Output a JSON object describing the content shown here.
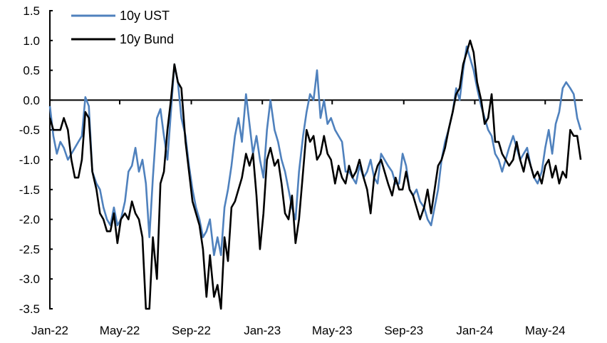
{
  "chart_data": {
    "type": "line",
    "title": "",
    "xlabel": "",
    "ylabel": "",
    "ylim": [
      -3.5,
      1.5
    ],
    "yticks": [
      "1.5",
      "1.0",
      "0.5",
      "0.0",
      "-0.5",
      "-1.0",
      "-1.5",
      "-2.0",
      "-2.5",
      "-3.0",
      "-3.5"
    ],
    "xticks": [
      {
        "date": "2022-01-01",
        "label": "Jan-22"
      },
      {
        "date": "2022-05-01",
        "label": "May-22"
      },
      {
        "date": "2022-09-01",
        "label": "Sep-22"
      },
      {
        "date": "2023-01-01",
        "label": "Jan-23"
      },
      {
        "date": "2023-05-01",
        "label": "May-23"
      },
      {
        "date": "2023-09-01",
        "label": "Sep-23"
      },
      {
        "date": "2024-01-01",
        "label": "Jan-24"
      },
      {
        "date": "2024-05-01",
        "label": "May-24"
      }
    ],
    "grid": false,
    "zero_line": true,
    "legend_position": "top-left",
    "x": [
      "2022-01-01",
      "2022-01-07",
      "2022-01-13",
      "2022-01-19",
      "2022-01-25",
      "2022-02-01",
      "2022-02-07",
      "2022-02-13",
      "2022-02-19",
      "2022-02-25",
      "2022-03-03",
      "2022-03-09",
      "2022-03-15",
      "2022-03-22",
      "2022-03-28",
      "2022-04-03",
      "2022-04-09",
      "2022-04-15",
      "2022-04-21",
      "2022-04-27",
      "2022-05-03",
      "2022-05-10",
      "2022-05-16",
      "2022-05-22",
      "2022-05-28",
      "2022-06-03",
      "2022-06-09",
      "2022-06-15",
      "2022-06-21",
      "2022-06-27",
      "2022-07-04",
      "2022-07-10",
      "2022-07-16",
      "2022-07-22",
      "2022-07-28",
      "2022-08-03",
      "2022-08-09",
      "2022-08-15",
      "2022-08-22",
      "2022-08-28",
      "2022-09-03",
      "2022-09-09",
      "2022-09-15",
      "2022-09-21",
      "2022-09-27",
      "2022-10-03",
      "2022-10-10",
      "2022-10-16",
      "2022-10-22",
      "2022-10-28",
      "2022-11-03",
      "2022-11-09",
      "2022-11-15",
      "2022-11-21",
      "2022-11-27",
      "2022-12-04",
      "2022-12-10",
      "2022-12-16",
      "2022-12-22",
      "2022-12-28",
      "2023-01-03",
      "2023-01-09",
      "2023-01-15",
      "2023-01-22",
      "2023-01-28",
      "2023-02-03",
      "2023-02-09",
      "2023-02-15",
      "2023-02-21",
      "2023-02-27",
      "2023-03-05",
      "2023-03-12",
      "2023-03-18",
      "2023-03-24",
      "2023-03-30",
      "2023-04-05",
      "2023-04-11",
      "2023-04-17",
      "2023-04-23",
      "2023-04-29",
      "2023-05-06",
      "2023-05-12",
      "2023-05-18",
      "2023-05-24",
      "2023-05-30",
      "2023-06-05",
      "2023-06-11",
      "2023-06-17",
      "2023-06-24",
      "2023-06-30",
      "2023-07-06",
      "2023-07-12",
      "2023-07-18",
      "2023-07-24",
      "2023-07-30",
      "2023-08-05",
      "2023-08-12",
      "2023-08-18",
      "2023-08-24",
      "2023-08-30",
      "2023-09-05",
      "2023-09-11",
      "2023-09-17",
      "2023-09-23",
      "2023-09-29",
      "2023-10-06",
      "2023-10-12",
      "2023-10-18",
      "2023-10-24",
      "2023-10-30",
      "2023-11-05",
      "2023-11-11",
      "2023-11-17",
      "2023-11-24",
      "2023-11-30",
      "2023-12-06",
      "2023-12-12",
      "2023-12-18",
      "2023-12-24",
      "2023-12-30",
      "2024-01-05",
      "2024-01-12",
      "2024-01-18",
      "2024-01-24",
      "2024-01-30",
      "2024-02-05",
      "2024-02-11",
      "2024-02-17",
      "2024-02-23",
      "2024-02-29",
      "2024-03-07",
      "2024-03-13",
      "2024-03-19",
      "2024-03-25",
      "2024-03-31",
      "2024-04-06",
      "2024-04-12",
      "2024-04-18",
      "2024-04-25",
      "2024-05-01",
      "2024-05-07",
      "2024-05-13",
      "2024-05-19",
      "2024-05-25",
      "2024-05-31",
      "2024-06-06",
      "2024-06-13",
      "2024-06-19",
      "2024-06-25",
      "2024-07-01"
    ],
    "series": [
      {
        "name": "10y UST",
        "color": "#4f81bd",
        "values": [
          -0.1,
          -0.6,
          -0.9,
          -0.7,
          -0.8,
          -1.0,
          -0.9,
          -0.8,
          -0.7,
          -0.6,
          0.05,
          -0.1,
          -1.2,
          -1.4,
          -1.5,
          -1.8,
          -2.0,
          -2.1,
          -1.8,
          -2.1,
          -2.0,
          -1.7,
          -1.2,
          -1.1,
          -0.8,
          -1.2,
          -1.0,
          -1.4,
          -2.3,
          -1.3,
          -0.3,
          -0.15,
          -0.6,
          -1.0,
          -0.2,
          0.6,
          0.3,
          -0.3,
          -0.6,
          -1.1,
          -1.5,
          -1.8,
          -2.0,
          -2.3,
          -2.2,
          -2.0,
          -2.6,
          -2.3,
          -2.6,
          -1.8,
          -1.5,
          -1.1,
          -0.6,
          -0.3,
          -0.7,
          0.1,
          -0.4,
          -0.9,
          -0.6,
          -1.0,
          -1.3,
          -0.5,
          0.0,
          -0.5,
          -0.7,
          -1.0,
          -1.2,
          -1.5,
          -1.8,
          -2.0,
          -1.2,
          -0.6,
          -0.2,
          0.1,
          0.0,
          0.5,
          -0.3,
          0.0,
          -0.4,
          -0.3,
          -0.5,
          -0.6,
          -0.7,
          -1.2,
          -1.2,
          -1.3,
          -1.4,
          -1.1,
          -1.3,
          -1.2,
          -1.0,
          -1.3,
          -1.4,
          -0.9,
          -1.0,
          -1.1,
          -1.2,
          -1.4,
          -1.4,
          -0.9,
          -1.1,
          -1.5,
          -1.6,
          -1.5,
          -1.7,
          -1.8,
          -2.0,
          -2.1,
          -1.8,
          -1.5,
          -1.0,
          -0.7,
          -0.5,
          -0.2,
          0.2,
          0.0,
          0.5,
          0.9,
          0.7,
          0.5,
          0.2,
          -0.1,
          -0.3,
          -0.5,
          -0.6,
          -0.9,
          -1.0,
          -1.2,
          -1.0,
          -0.8,
          -0.6,
          -0.8,
          -1.0,
          -0.9,
          -0.8,
          -1.1,
          -1.3,
          -1.4,
          -1.2,
          -0.8,
          -0.5,
          -0.9,
          -0.4,
          -0.2,
          0.2,
          0.3,
          0.2,
          0.1,
          -0.3,
          -0.5
        ]
      },
      {
        "name": "10y Bund",
        "color": "#000000",
        "values": [
          -0.3,
          -0.5,
          -0.5,
          -0.5,
          -0.3,
          -0.5,
          -1.0,
          -1.3,
          -1.3,
          -1.0,
          -0.2,
          -0.3,
          -1.2,
          -1.5,
          -1.9,
          -2.0,
          -2.2,
          -2.2,
          -1.9,
          -2.4,
          -2.0,
          -1.9,
          -2.0,
          -1.7,
          -1.9,
          -2.0,
          -2.3,
          -3.5,
          -3.5,
          -2.3,
          -3.0,
          -1.4,
          -1.2,
          -0.5,
          0.0,
          0.6,
          0.3,
          0.2,
          -0.7,
          -1.2,
          -1.7,
          -1.9,
          -2.1,
          -2.5,
          -3.3,
          -2.6,
          -3.3,
          -3.1,
          -3.5,
          -2.3,
          -2.7,
          -1.8,
          -1.7,
          -1.5,
          -1.3,
          -0.9,
          -1.1,
          -0.9,
          -1.6,
          -2.5,
          -1.9,
          -1.0,
          -0.8,
          -1.1,
          -1.0,
          -1.4,
          -1.9,
          -2.0,
          -1.6,
          -2.4,
          -2.0,
          -1.2,
          -0.5,
          -0.7,
          -0.6,
          -1.0,
          -0.9,
          -0.6,
          -0.9,
          -1.0,
          -1.4,
          -1.1,
          -1.3,
          -1.4,
          -1.1,
          -1.3,
          -1.2,
          -1.0,
          -1.3,
          -1.5,
          -1.9,
          -1.3,
          -1.1,
          -1.0,
          -1.2,
          -1.4,
          -1.6,
          -1.3,
          -1.5,
          -1.5,
          -1.2,
          -1.5,
          -1.6,
          -1.8,
          -2.0,
          -1.8,
          -1.5,
          -1.9,
          -1.5,
          -1.1,
          -1.0,
          -0.8,
          -0.5,
          -0.2,
          0.1,
          0.2,
          0.6,
          0.8,
          1.0,
          0.8,
          0.3,
          0.0,
          -0.4,
          -0.3,
          0.1,
          -0.7,
          -0.7,
          -0.9,
          -1.0,
          -1.1,
          -1.0,
          -0.7,
          -1.0,
          -1.2,
          -0.9,
          -1.1,
          -1.3,
          -1.2,
          -1.4,
          -1.1,
          -1.0,
          -1.3,
          -1.1,
          -1.4,
          -1.2,
          -1.3,
          -0.5,
          -0.6,
          -0.6,
          -1.0
        ]
      }
    ]
  }
}
